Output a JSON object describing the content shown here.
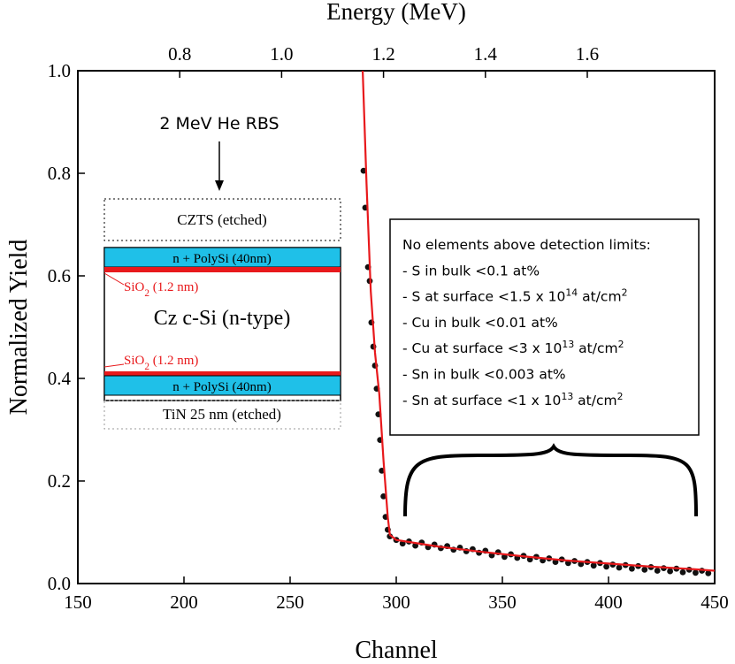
{
  "chart_data": {
    "type": "scatter",
    "x_label": "Channel",
    "y_label": "Normalized Yield",
    "x2_label": "Energy (MeV)",
    "xlim": [
      150,
      450
    ],
    "xticks": [
      150,
      200,
      250,
      300,
      350,
      400,
      450
    ],
    "ylim": [
      0,
      1
    ],
    "yticks": [
      {
        "value": 0,
        "label": "0.0"
      },
      0.2,
      0.4,
      0.6,
      0.8,
      {
        "value": 1,
        "label": "1.0"
      }
    ],
    "x2lim": [
      0.6,
      1.85
    ],
    "x2ticks": [
      0.8,
      {
        "value": 1,
        "label": "1.0"
      },
      1.2,
      1.4,
      1.6
    ],
    "series": [
      {
        "kind": "points",
        "color": "#111111",
        "x": [
          284.6,
          285.4,
          286.7,
          287.5,
          288.3,
          289.2,
          290.0,
          290.8,
          291.6,
          292.4,
          293.2,
          294.0,
          295.0,
          296.0,
          297.0,
          300,
          303,
          306,
          309,
          312,
          315,
          318,
          321,
          324,
          327,
          330,
          333,
          336,
          339,
          342,
          345,
          348,
          351,
          354,
          357,
          360,
          363,
          366,
          369,
          372,
          375,
          378,
          381,
          384,
          387,
          390,
          393,
          396,
          399,
          402,
          405,
          408,
          411,
          414,
          417,
          420,
          423,
          426,
          429,
          432,
          435,
          438,
          441,
          444,
          447
        ],
        "values": [
          0.805,
          0.733,
          0.617,
          0.59,
          0.509,
          0.462,
          0.425,
          0.38,
          0.33,
          0.28,
          0.22,
          0.17,
          0.13,
          0.105,
          0.092,
          0.085,
          0.078,
          0.082,
          0.074,
          0.08,
          0.071,
          0.076,
          0.069,
          0.073,
          0.066,
          0.07,
          0.063,
          0.067,
          0.06,
          0.064,
          0.055,
          0.061,
          0.052,
          0.057,
          0.05,
          0.054,
          0.047,
          0.052,
          0.045,
          0.049,
          0.042,
          0.047,
          0.04,
          0.044,
          0.038,
          0.042,
          0.035,
          0.04,
          0.033,
          0.037,
          0.031,
          0.036,
          0.029,
          0.034,
          0.027,
          0.032,
          0.025,
          0.03,
          0.024,
          0.029,
          0.022,
          0.027,
          0.021,
          0.025,
          0.02
        ]
      },
      {
        "kind": "line",
        "color": "#e8191c",
        "x": [
          284.2,
          286,
          288,
          290,
          292,
          294,
          296,
          297,
          300,
          320,
          340,
          360,
          380,
          400,
          420,
          440,
          450
        ],
        "values": [
          1.0,
          0.78,
          0.57,
          0.45,
          0.37,
          0.24,
          0.13,
          0.095,
          0.085,
          0.072,
          0.062,
          0.053,
          0.045,
          0.039,
          0.033,
          0.028,
          0.025
        ]
      }
    ],
    "inset": {
      "beam": "2 MeV He RBS",
      "top_layer": "CZTS (etched)",
      "polysi_top": "n + PolySi (40nm)",
      "oxide_top": [
        {
          "text": "SiO"
        },
        {
          "text": "2",
          "shift": "sub"
        },
        {
          "text": " (1.2 nm)"
        }
      ],
      "substrate": "Cz c-Si (n-type)",
      "oxide_bottom": [
        {
          "text": "SiO"
        },
        {
          "text": "2",
          "shift": "sub"
        },
        {
          "text": " (1.2 nm)"
        }
      ],
      "polysi_bottom": "n + PolySi (40nm)",
      "bottom_layer": "TiN 25 nm (etched)"
    },
    "note": [
      [
        {
          "text": "No elements above detection limits:"
        }
      ],
      [
        {
          "text": "- S in bulk <0.1 at%"
        }
      ],
      [
        {
          "text": "- S at surface <1.5 x 10"
        },
        {
          "text": "14",
          "shift": "sup"
        },
        {
          "text": " at/cm"
        },
        {
          "text": "2",
          "shift": "sup"
        }
      ],
      [
        {
          "text": "- Cu in bulk <0.01 at%"
        }
      ],
      [
        {
          "text": "- Cu at surface <3 x 10"
        },
        {
          "text": "13",
          "shift": "sup"
        },
        {
          "text": " at/cm"
        },
        {
          "text": "2",
          "shift": "sup"
        }
      ],
      [
        {
          "text": "- Sn in bulk <0.003 at%"
        }
      ],
      [
        {
          "text": "- Sn at surface <1 x 10"
        },
        {
          "text": "13",
          "shift": "sup"
        },
        {
          "text": " at/cm"
        },
        {
          "text": "2",
          "shift": "sup"
        }
      ]
    ]
  }
}
